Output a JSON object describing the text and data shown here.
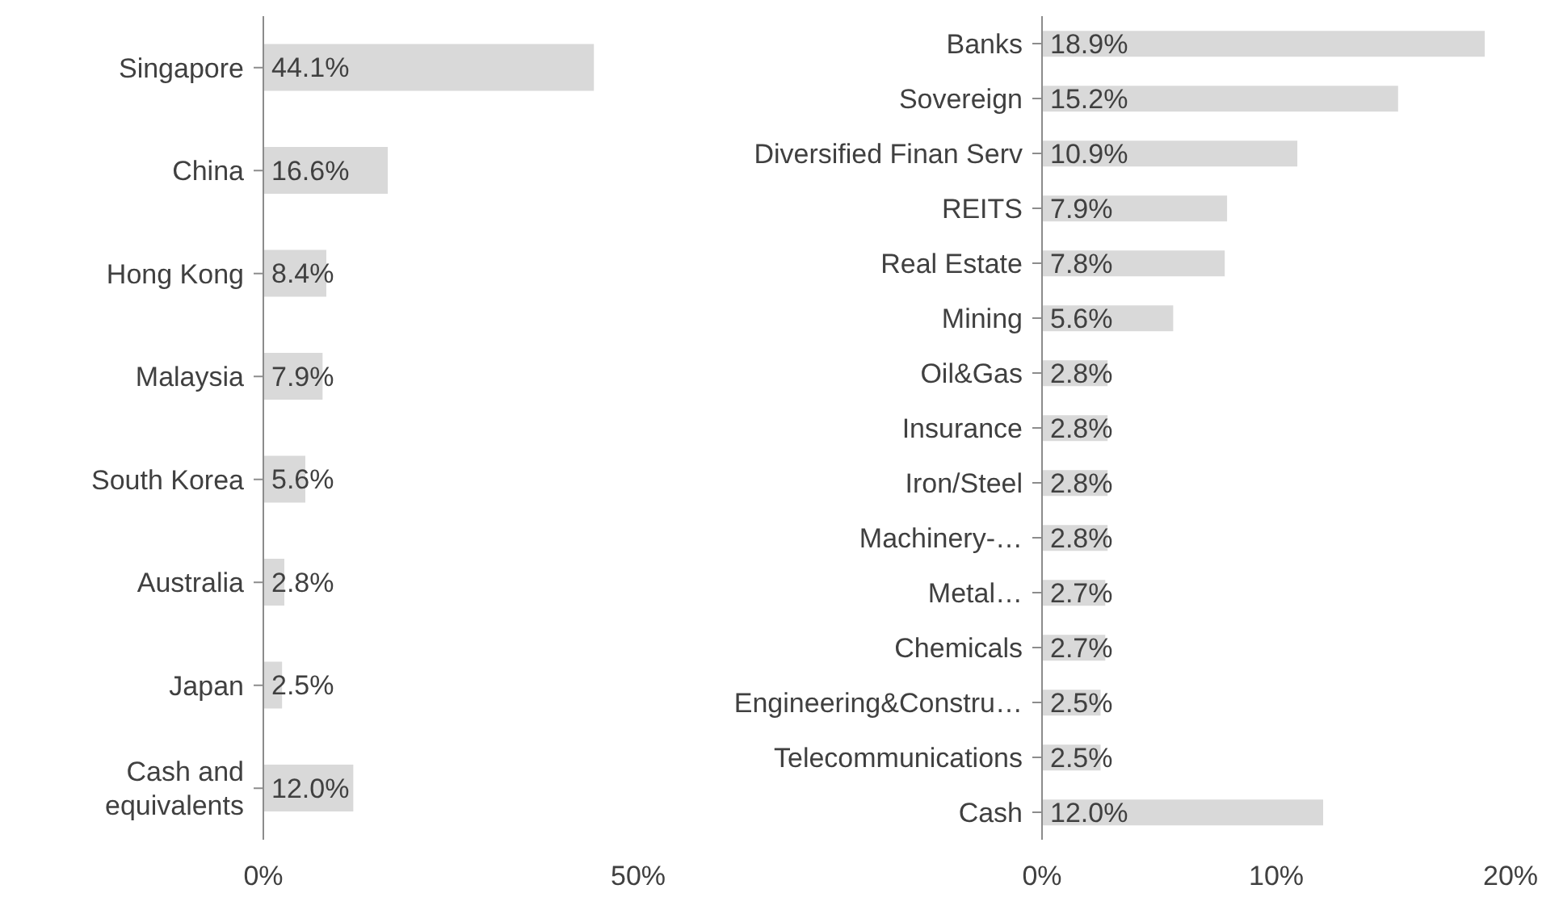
{
  "chart_data": [
    {
      "type": "bar",
      "orientation": "horizontal",
      "categories": [
        "Singapore",
        "China",
        "Hong Kong",
        "Malaysia",
        "South Korea",
        "Australia",
        "Japan",
        "Cash and equivalents"
      ],
      "values": [
        44.1,
        16.6,
        8.4,
        7.9,
        5.6,
        2.8,
        2.5,
        12.0
      ],
      "value_labels": [
        "44.1%",
        "16.6%",
        "8.4%",
        "7.9%",
        "5.6%",
        "2.8%",
        "2.5%",
        "12.0%"
      ],
      "color": "#d9d9d9",
      "xlim": [
        0,
        50
      ],
      "xticks": [
        {
          "value": 0,
          "label": "0%"
        },
        {
          "value": 50,
          "label": "50%"
        }
      ]
    },
    {
      "type": "bar",
      "orientation": "horizontal",
      "categories": [
        "Banks",
        "Sovereign",
        "Diversified Finan Serv",
        "REITS",
        "Real Estate",
        "Mining",
        "Oil&Gas",
        "Insurance",
        "Iron/Steel",
        "Machinery-…",
        "Metal…",
        "Chemicals",
        "Engineering&Constru…",
        "Telecommunications",
        "Cash"
      ],
      "values": [
        18.9,
        15.2,
        10.9,
        7.9,
        7.8,
        5.6,
        2.8,
        2.8,
        2.8,
        2.8,
        2.7,
        2.7,
        2.5,
        2.5,
        12.0
      ],
      "value_labels": [
        "18.9%",
        "15.2%",
        "10.9%",
        "7.9%",
        "7.8%",
        "5.6%",
        "2.8%",
        "2.8%",
        "2.8%",
        "2.8%",
        "2.7%",
        "2.7%",
        "2.5%",
        "2.5%",
        "12.0%"
      ],
      "color": "#d9d9d9",
      "xlim": [
        0,
        20
      ],
      "xticks": [
        {
          "value": 0,
          "label": "0%"
        },
        {
          "value": 10,
          "label": "10%"
        },
        {
          "value": 20,
          "label": "20%"
        }
      ]
    }
  ]
}
